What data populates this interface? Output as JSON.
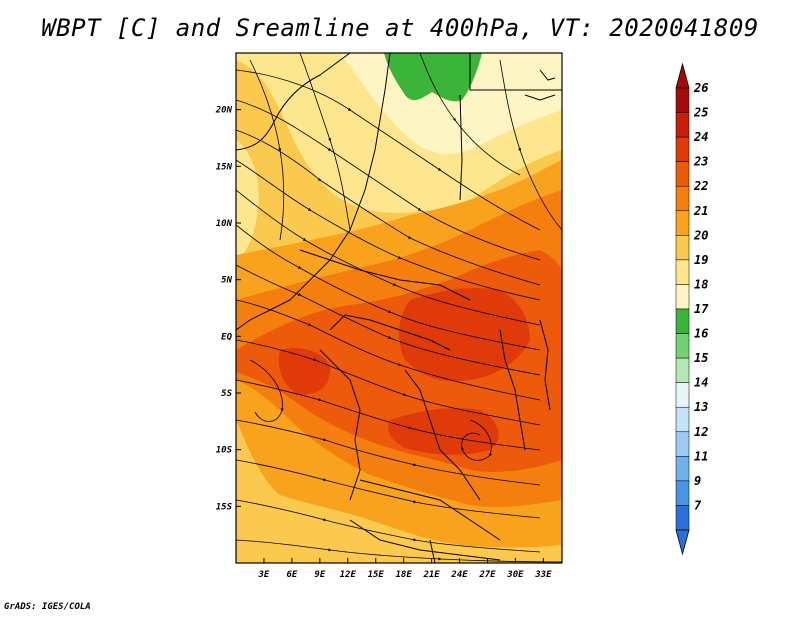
{
  "title": "WBPT [C] and Sreamline at 400hPa, VT: 2020041809",
  "footer": "GrADS: IGES/COLA",
  "map": {
    "lon_range": [
      0,
      35
    ],
    "lat_range": [
      -20,
      25
    ],
    "x_ticks": [
      "3E",
      "6E",
      "9E",
      "12E",
      "15E",
      "18E",
      "21E",
      "24E",
      "27E",
      "30E",
      "33E"
    ],
    "x_tick_values": [
      3,
      6,
      9,
      12,
      15,
      18,
      21,
      24,
      27,
      30,
      33
    ],
    "y_ticks": [
      "20N",
      "15N",
      "10N",
      "5N",
      "EQ",
      "5S",
      "10S",
      "15S"
    ],
    "y_tick_values": [
      20,
      15,
      10,
      5,
      0,
      -5,
      -10,
      -15
    ]
  },
  "colorbar": {
    "levels": [
      "26",
      "25",
      "24",
      "23",
      "22",
      "21",
      "20",
      "19",
      "18",
      "17",
      "16",
      "15",
      "14",
      "13",
      "12",
      "11",
      "9",
      "7"
    ],
    "colors": [
      "#a50a0a",
      "#c81e0a",
      "#e03a0a",
      "#ee5a0c",
      "#f57f0e",
      "#f9a21e",
      "#fbc94d",
      "#fde68e",
      "#fdf6c4",
      "#3ab53a",
      "#73d073",
      "#b4e8b4",
      "#e6f6f6",
      "#c4e2f8",
      "#9ccaf2",
      "#72b0ec",
      "#4a94e4",
      "#2a70d8"
    ]
  }
}
